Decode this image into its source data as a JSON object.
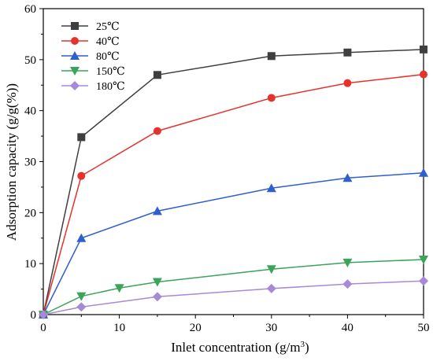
{
  "chart_data": {
    "type": "line",
    "xlabel": "Inlet concentration (g/m",
    "xlabel_sup": "3",
    "xlabel_end": ")",
    "ylabel": "Adsorption capacity (g/g(%))",
    "xlim": [
      0,
      50
    ],
    "ylim": [
      0,
      60
    ],
    "xticks": [
      0,
      10,
      20,
      30,
      40,
      50
    ],
    "yticks": [
      0,
      10,
      20,
      30,
      40,
      50,
      60
    ],
    "grid": false,
    "legend_position": "top-left",
    "series": [
      {
        "name": "25℃",
        "color": "#3f3f3f",
        "marker": "square",
        "x": [
          0,
          5,
          15,
          30,
          40,
          50
        ],
        "y": [
          0,
          34.8,
          47.0,
          50.7,
          51.4,
          52.0
        ]
      },
      {
        "name": "40℃",
        "color": "#e5322d",
        "marker": "circle",
        "x": [
          0,
          5,
          15,
          30,
          40,
          50
        ],
        "y": [
          0,
          27.2,
          36.0,
          42.5,
          45.4,
          47.1
        ]
      },
      {
        "name": "80℃",
        "color": "#2f5fcc",
        "marker": "triangle-up",
        "x": [
          0,
          5,
          15,
          30,
          40,
          50
        ],
        "y": [
          0,
          15.0,
          20.3,
          24.8,
          26.8,
          27.8
        ]
      },
      {
        "name": "150℃",
        "color": "#3ba35a",
        "marker": "triangle-down",
        "x": [
          0,
          5,
          10,
          15,
          30,
          40,
          50
        ],
        "y": [
          0,
          3.6,
          5.2,
          6.4,
          8.9,
          10.2,
          10.8
        ]
      },
      {
        "name": "180℃",
        "color": "#a68ad6",
        "marker": "diamond",
        "x": [
          0,
          5,
          15,
          30,
          40,
          50
        ],
        "y": [
          0,
          1.5,
          3.5,
          5.1,
          6.0,
          6.6
        ]
      }
    ]
  }
}
